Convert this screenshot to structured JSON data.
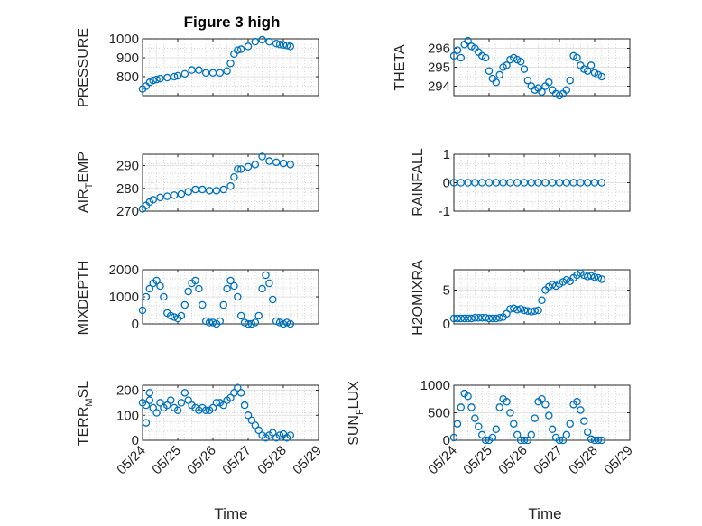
{
  "figure": {
    "title": "Figure 3 high",
    "marker_color": "#0072BD"
  },
  "x_ticks": [
    "05/24",
    "05/25",
    "05/26",
    "05/27",
    "05/28",
    "05/29"
  ],
  "chart_data": [
    {
      "type": "scatter",
      "title": "Figure 3 high",
      "ylabel": "PRESSURE",
      "ylim": [
        700,
        1000
      ],
      "yticks": [
        800,
        900,
        1000
      ],
      "x": [
        0.0,
        0.1,
        0.2,
        0.3,
        0.4,
        0.5,
        0.7,
        0.9,
        1.0,
        1.2,
        1.4,
        1.6,
        1.8,
        2.0,
        2.2,
        2.4,
        2.5,
        2.6,
        2.7,
        2.8,
        3.0,
        3.2,
        3.4,
        3.6,
        3.8,
        3.9,
        4.0,
        4.1,
        4.2
      ],
      "y": [
        735,
        750,
        770,
        780,
        785,
        790,
        795,
        800,
        805,
        815,
        835,
        835,
        820,
        820,
        820,
        830,
        870,
        920,
        940,
        945,
        960,
        985,
        995,
        985,
        975,
        970,
        968,
        965,
        960
      ]
    },
    {
      "type": "scatter",
      "ylabel": "THETA",
      "ylim": [
        293.5,
        296.5
      ],
      "yticks": [
        294,
        295,
        296
      ],
      "x": [
        0.0,
        0.1,
        0.2,
        0.3,
        0.4,
        0.5,
        0.6,
        0.7,
        0.8,
        0.9,
        1.0,
        1.1,
        1.2,
        1.3,
        1.4,
        1.5,
        1.6,
        1.7,
        1.8,
        1.9,
        2.0,
        2.1,
        2.2,
        2.3,
        2.4,
        2.5,
        2.6,
        2.7,
        2.8,
        2.9,
        3.0,
        3.1,
        3.2,
        3.3,
        3.4,
        3.5,
        3.6,
        3.7,
        3.8,
        3.9,
        4.0,
        4.1,
        4.2
      ],
      "y": [
        295.6,
        295.9,
        295.5,
        296.2,
        296.4,
        296.1,
        296.0,
        295.8,
        295.6,
        295.5,
        294.8,
        294.4,
        294.2,
        294.6,
        295.0,
        295.1,
        295.4,
        295.5,
        295.4,
        295.3,
        294.9,
        294.3,
        294.0,
        293.8,
        293.9,
        293.7,
        294.0,
        294.2,
        293.8,
        293.6,
        293.5,
        293.6,
        293.8,
        294.3,
        295.6,
        295.5,
        295.1,
        294.9,
        294.8,
        295.1,
        294.7,
        294.6,
        294.5
      ]
    },
    {
      "type": "scatter",
      "ylabel": "AIR_TEMP",
      "ylim": [
        270,
        295
      ],
      "yticks": [
        270,
        280,
        290
      ],
      "x": [
        0.0,
        0.1,
        0.2,
        0.3,
        0.5,
        0.7,
        0.9,
        1.1,
        1.3,
        1.5,
        1.7,
        1.9,
        2.1,
        2.3,
        2.5,
        2.6,
        2.7,
        2.8,
        3.0,
        3.2,
        3.4,
        3.6,
        3.8,
        4.0,
        4.2
      ],
      "y": [
        271,
        272.5,
        274,
        275,
        276,
        276.5,
        277,
        277.5,
        278.5,
        279.5,
        279.5,
        279,
        279,
        279.5,
        281,
        285,
        288.5,
        288.5,
        289.5,
        290.5,
        294,
        292,
        291.5,
        291,
        290.5
      ]
    },
    {
      "type": "scatter",
      "ylabel": "RAINFALL",
      "ylim": [
        -1,
        1
      ],
      "yticks": [
        -1,
        0,
        1
      ],
      "x": [
        0.0,
        0.2,
        0.4,
        0.6,
        0.8,
        1.0,
        1.2,
        1.4,
        1.6,
        1.8,
        2.0,
        2.2,
        2.4,
        2.6,
        2.8,
        3.0,
        3.2,
        3.4,
        3.6,
        3.8,
        4.0,
        4.2
      ],
      "y": [
        0,
        0,
        0,
        0,
        0,
        0,
        0,
        0,
        0,
        0,
        0,
        0,
        0,
        0,
        0,
        0,
        0,
        0,
        0,
        0,
        0,
        0
      ]
    },
    {
      "type": "scatter",
      "ylabel": "MIXDEPTH",
      "ylim": [
        0,
        2000
      ],
      "yticks": [
        0,
        1000,
        2000
      ],
      "x": [
        0.0,
        0.1,
        0.2,
        0.3,
        0.4,
        0.5,
        0.6,
        0.7,
        0.8,
        0.9,
        1.0,
        1.1,
        1.2,
        1.3,
        1.4,
        1.5,
        1.6,
        1.7,
        1.8,
        1.9,
        2.0,
        2.1,
        2.2,
        2.3,
        2.4,
        2.5,
        2.6,
        2.7,
        2.8,
        2.9,
        3.0,
        3.1,
        3.2,
        3.3,
        3.4,
        3.5,
        3.6,
        3.7,
        3.8,
        3.9,
        4.0,
        4.1,
        4.2
      ],
      "y": [
        500,
        1000,
        1300,
        1500,
        1600,
        1400,
        1000,
        400,
        300,
        250,
        200,
        300,
        700,
        1200,
        1500,
        1600,
        1300,
        700,
        100,
        50,
        50,
        0,
        100,
        700,
        1300,
        1600,
        1400,
        1000,
        300,
        50,
        0,
        0,
        50,
        300,
        1300,
        1800,
        1500,
        900,
        100,
        50,
        0,
        50,
        0
      ]
    },
    {
      "type": "scatter",
      "ylabel": "H2OMIXRA",
      "ylim": [
        0,
        8
      ],
      "yticks": [
        0,
        5
      ],
      "x": [
        0.0,
        0.1,
        0.2,
        0.3,
        0.4,
        0.5,
        0.6,
        0.7,
        0.8,
        0.9,
        1.0,
        1.1,
        1.2,
        1.3,
        1.4,
        1.5,
        1.6,
        1.7,
        1.8,
        1.9,
        2.0,
        2.1,
        2.2,
        2.3,
        2.4,
        2.5,
        2.6,
        2.7,
        2.8,
        2.9,
        3.0,
        3.1,
        3.2,
        3.3,
        3.4,
        3.5,
        3.6,
        3.7,
        3.8,
        3.9,
        4.0,
        4.1,
        4.2
      ],
      "y": [
        0.8,
        0.8,
        0.8,
        0.8,
        0.8,
        0.8,
        0.9,
        0.9,
        0.9,
        0.9,
        0.8,
        0.8,
        0.8,
        0.9,
        1.0,
        1.5,
        2.2,
        2.3,
        2.1,
        2.2,
        2.0,
        1.9,
        1.8,
        1.9,
        2.0,
        3.5,
        5.0,
        5.5,
        5.8,
        5.6,
        5.9,
        6.2,
        6.5,
        6.3,
        6.8,
        7.2,
        7.5,
        7.2,
        7.0,
        7.1,
        6.9,
        6.8,
        6.6
      ]
    },
    {
      "type": "scatter",
      "ylabel": "TERR_MSL",
      "ylim": [
        0,
        220
      ],
      "yticks": [
        0,
        100,
        200
      ],
      "x": [
        0.0,
        0.1,
        0.2,
        0.3,
        0.4,
        0.5,
        0.6,
        0.7,
        0.8,
        0.9,
        1.0,
        1.1,
        1.2,
        1.3,
        1.4,
        1.5,
        1.6,
        1.7,
        1.8,
        1.9,
        2.0,
        2.1,
        2.2,
        2.3,
        2.4,
        2.5,
        2.6,
        2.7,
        2.8,
        2.9,
        3.0,
        3.1,
        3.2,
        3.3,
        3.4,
        3.5,
        3.6,
        3.7,
        3.8,
        3.9,
        4.0,
        4.1,
        4.2,
        0.1,
        0.2
      ],
      "y": [
        150,
        140,
        160,
        130,
        110,
        150,
        130,
        140,
        160,
        130,
        120,
        150,
        190,
        160,
        140,
        130,
        120,
        130,
        120,
        120,
        130,
        150,
        150,
        140,
        160,
        170,
        190,
        210,
        190,
        140,
        100,
        80,
        60,
        40,
        20,
        10,
        20,
        30,
        10,
        20,
        25,
        10,
        20,
        70,
        190
      ]
    },
    {
      "type": "scatter",
      "ylabel": "SUN_FLUX",
      "ylim": [
        0,
        1000
      ],
      "yticks": [
        0,
        500,
        1000
      ],
      "x": [
        0.0,
        0.1,
        0.2,
        0.3,
        0.4,
        0.5,
        0.6,
        0.7,
        0.8,
        0.9,
        1.0,
        1.1,
        1.2,
        1.3,
        1.4,
        1.5,
        1.6,
        1.7,
        1.8,
        1.9,
        2.0,
        2.1,
        2.2,
        2.3,
        2.4,
        2.5,
        2.6,
        2.7,
        2.8,
        2.9,
        3.0,
        3.1,
        3.2,
        3.3,
        3.4,
        3.5,
        3.6,
        3.7,
        3.8,
        3.9,
        4.0,
        4.1,
        4.2
      ],
      "y": [
        50,
        300,
        600,
        850,
        800,
        600,
        400,
        250,
        100,
        0,
        0,
        50,
        200,
        600,
        750,
        700,
        500,
        300,
        100,
        0,
        0,
        0,
        100,
        400,
        700,
        750,
        650,
        450,
        200,
        50,
        0,
        0,
        100,
        300,
        650,
        700,
        550,
        350,
        150,
        20,
        0,
        0,
        0
      ]
    }
  ],
  "panel_labels": {
    "pressure": "PRESSURE",
    "theta": "THETA",
    "air_temp_main": "AIR",
    "air_temp_sub": "T",
    "air_temp_tail": "EMP",
    "rainfall": "RAINFALL",
    "mixdepth": "MIXDEPTH",
    "h2omixra": "H2OMIXRA",
    "terr_main": "TERR",
    "terr_sub": "M",
    "terr_tail": "SL",
    "sun_main": "SUN",
    "sun_sub": "F",
    "sun_tail": "LUX"
  },
  "xlabel": "Time"
}
